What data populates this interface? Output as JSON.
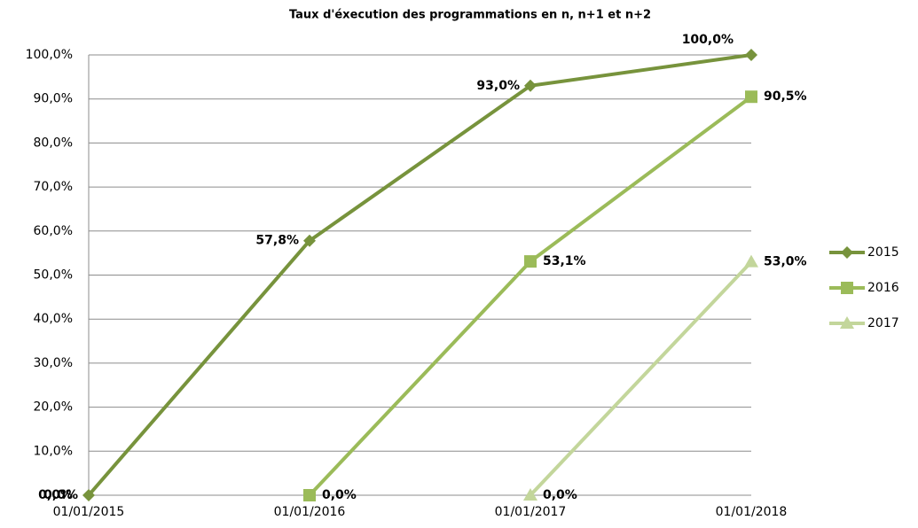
{
  "chart_data": {
    "type": "line",
    "title": "Taux d'éxecution des programmations  en n, n+1 et n+2",
    "categories": [
      "01/01/2015",
      "01/01/2016",
      "01/01/2017",
      "01/01/2018"
    ],
    "series": [
      {
        "name": "2015",
        "color": "#77933c",
        "marker": "diamond",
        "values": [
          0,
          57.8,
          93.0,
          100.0
        ],
        "value_labels": [
          "0,0%",
          "57,8%",
          "93,0%",
          "100,0%"
        ]
      },
      {
        "name": "2016",
        "color": "#9bbb59",
        "marker": "square",
        "values": [
          null,
          0,
          53.1,
          90.5
        ],
        "value_labels": [
          null,
          "0,0%",
          "53,1%",
          "90,5%"
        ]
      },
      {
        "name": "2017",
        "color": "#c3d69b",
        "marker": "triangle",
        "values": [
          null,
          null,
          0,
          53.0
        ],
        "value_labels": [
          null,
          null,
          "0,0%",
          "53,0%"
        ]
      }
    ],
    "ylim": [
      0,
      100
    ],
    "yticks": [
      {
        "value": 0,
        "label": "0,0%"
      },
      {
        "value": 10,
        "label": "10,0%"
      },
      {
        "value": 20,
        "label": "20,0%"
      },
      {
        "value": 30,
        "label": "30,0%"
      },
      {
        "value": 40,
        "label": "40,0%"
      },
      {
        "value": 50,
        "label": "50,0%"
      },
      {
        "value": 60,
        "label": "60,0%"
      },
      {
        "value": 70,
        "label": "70,0%"
      },
      {
        "value": 80,
        "label": "80,0%"
      },
      {
        "value": 90,
        "label": "90,0%"
      },
      {
        "value": 100,
        "label": "100,0%"
      }
    ],
    "grid": true,
    "legend": "right"
  }
}
